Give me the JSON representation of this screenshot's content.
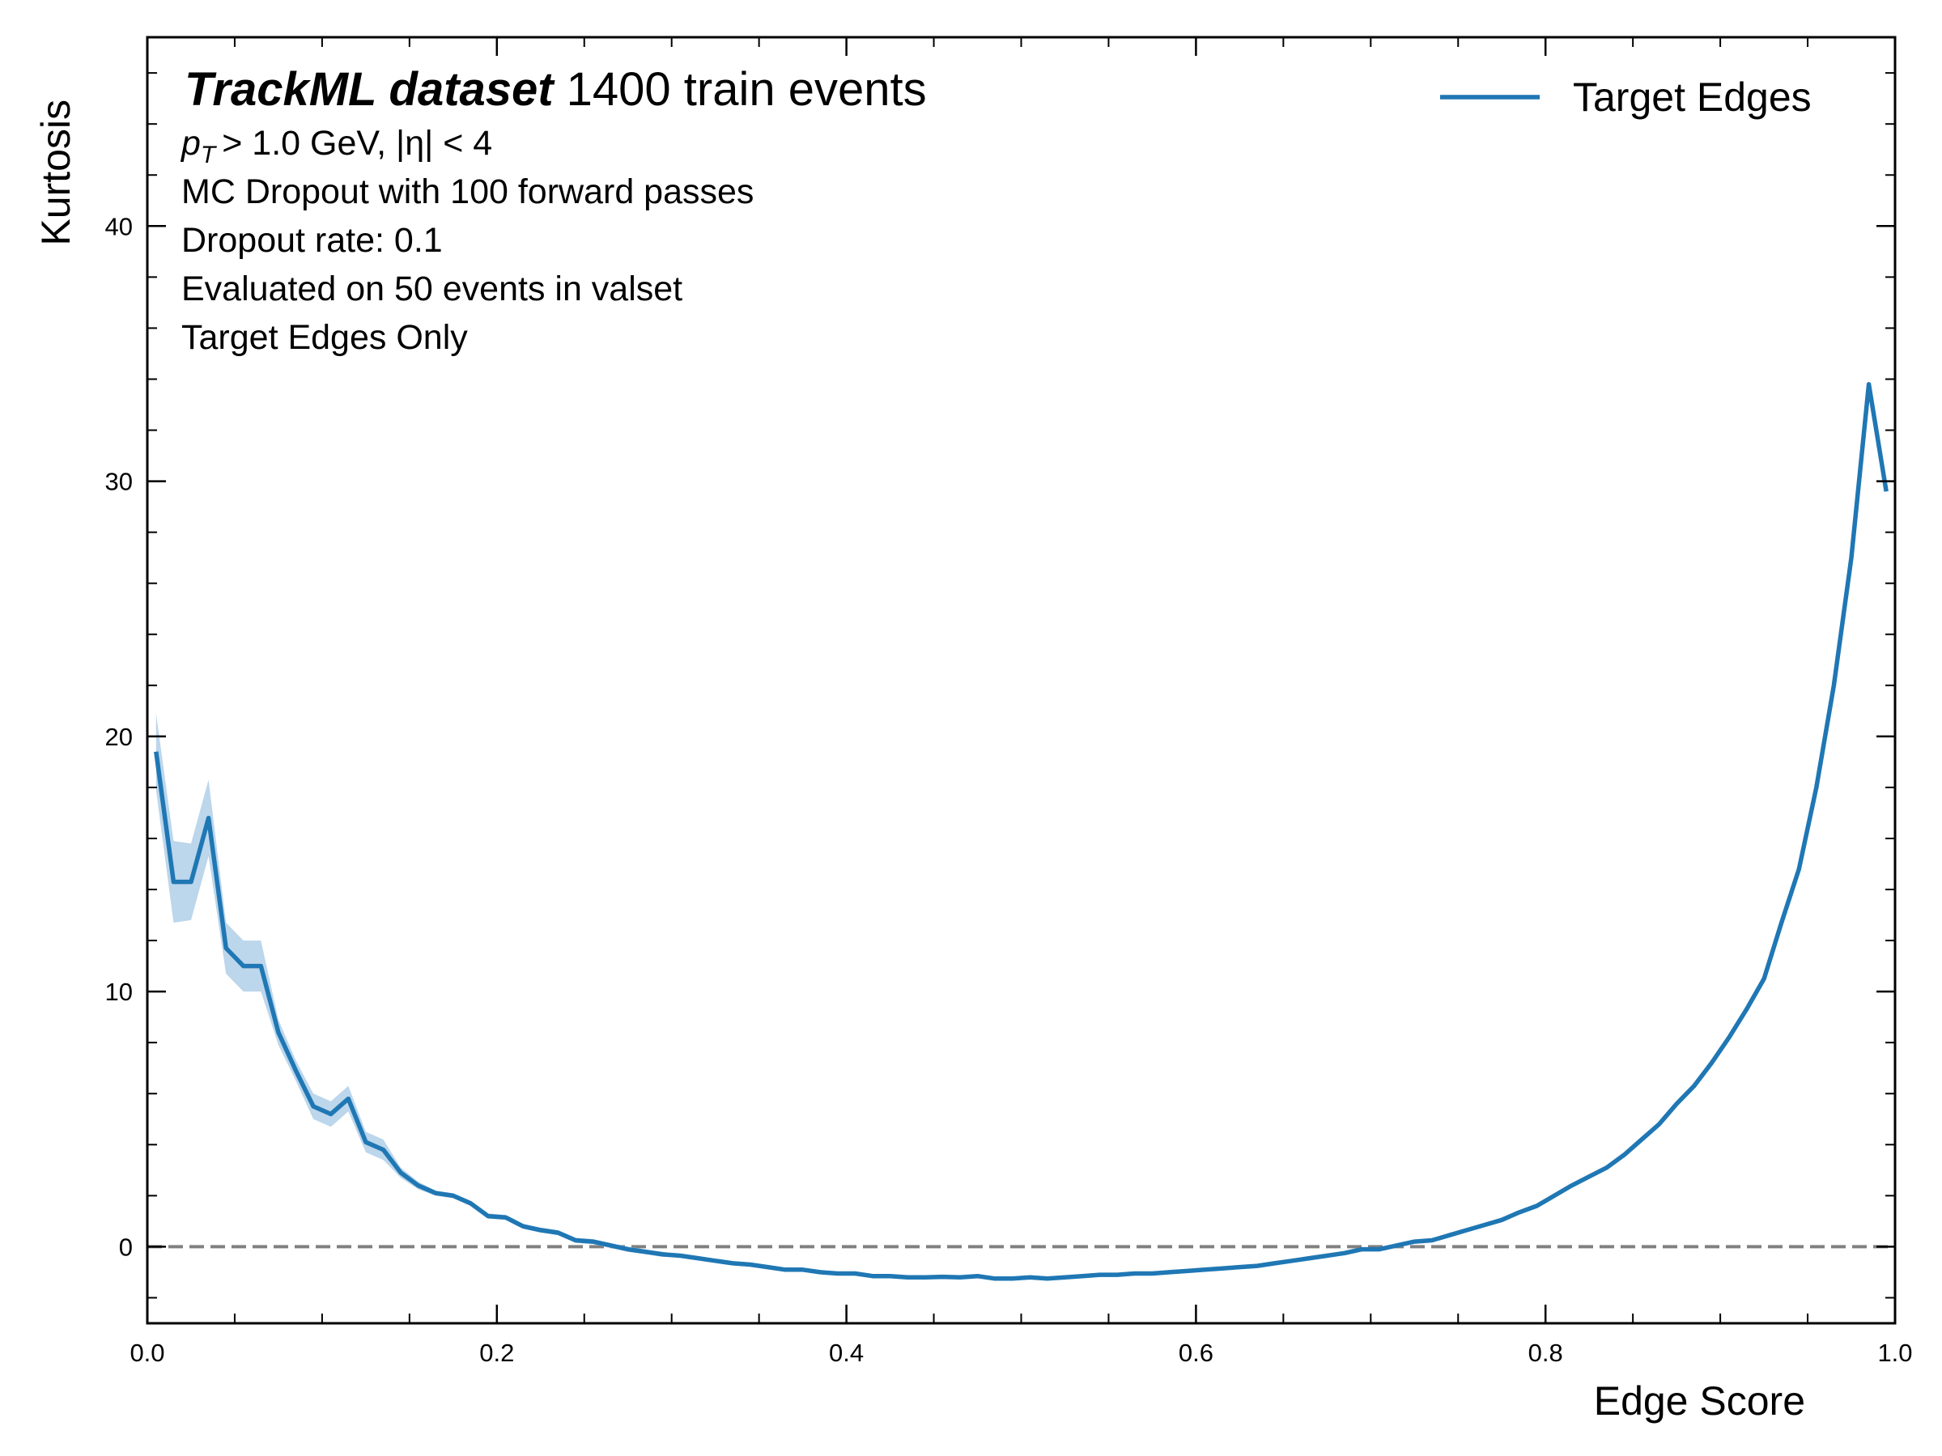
{
  "chart_data": {
    "type": "line",
    "title": {
      "bold": "TrackML dataset",
      "rest": "1400 train events"
    },
    "cut": {
      "symbol": "p",
      "subscript": "T",
      "text": "> 1.0 GeV, |η| < 4"
    },
    "annotations": [
      "MC Dropout with 100 forward passes",
      "Dropout rate: 0.1",
      "Evaluated on 50 events in valset",
      "Target Edges Only"
    ],
    "x_label": "Edge Score",
    "y_label": "Kurtosis",
    "xlim": [
      0,
      1
    ],
    "ylim": [
      -3,
      47.4
    ],
    "xticks": [
      {
        "value": 0,
        "label": "0.0"
      },
      0.2,
      0.4,
      0.6,
      0.8,
      {
        "value": 1,
        "label": "1.0"
      }
    ],
    "yticks": [
      0,
      10,
      20,
      30,
      40
    ],
    "xminorticks": [
      0.05,
      0.1,
      0.15,
      0.25,
      0.3,
      0.35,
      0.45,
      0.5,
      0.55,
      0.65,
      0.7,
      0.75,
      0.85,
      0.9,
      0.95
    ],
    "yminorticks": [
      -2,
      2,
      4,
      6,
      8,
      12,
      14,
      16,
      18,
      22,
      24,
      26,
      28,
      32,
      34,
      36,
      38,
      42,
      44,
      46
    ],
    "hline": 0,
    "hline_color": "#808080",
    "legend": "upper right",
    "x": [
      0.005,
      0.015,
      0.025,
      0.035,
      0.045,
      0.055,
      0.065,
      0.075,
      0.085,
      0.095,
      0.105,
      0.115,
      0.125,
      0.135,
      0.145,
      0.155,
      0.165,
      0.175,
      0.185,
      0.195,
      0.205,
      0.215,
      0.225,
      0.235,
      0.245,
      0.255,
      0.265,
      0.275,
      0.285,
      0.295,
      0.305,
      0.315,
      0.325,
      0.335,
      0.345,
      0.355,
      0.365,
      0.375,
      0.385,
      0.395,
      0.405,
      0.415,
      0.425,
      0.435,
      0.445,
      0.455,
      0.465,
      0.475,
      0.485,
      0.495,
      0.505,
      0.515,
      0.525,
      0.535,
      0.545,
      0.555,
      0.565,
      0.575,
      0.585,
      0.595,
      0.605,
      0.615,
      0.625,
      0.635,
      0.645,
      0.655,
      0.665,
      0.675,
      0.685,
      0.695,
      0.705,
      0.715,
      0.725,
      0.735,
      0.745,
      0.755,
      0.765,
      0.775,
      0.785,
      0.795,
      0.805,
      0.815,
      0.825,
      0.835,
      0.845,
      0.855,
      0.865,
      0.875,
      0.885,
      0.895,
      0.905,
      0.915,
      0.925,
      0.935,
      0.945,
      0.955,
      0.965,
      0.975,
      0.985,
      0.995
    ],
    "series": [
      {
        "name": "Target Edges",
        "color": "#1f77b4",
        "band_color": "#a6c8e4",
        "values": [
          19.4,
          14.3,
          14.3,
          16.8,
          11.7,
          11.0,
          11.0,
          8.4,
          6.9,
          5.5,
          5.2,
          5.8,
          4.1,
          3.8,
          2.9,
          2.4,
          2.1,
          2.0,
          1.7,
          1.2,
          1.15,
          0.8,
          0.65,
          0.55,
          0.25,
          0.2,
          0.05,
          -0.1,
          -0.2,
          -0.3,
          -0.35,
          -0.45,
          -0.55,
          -0.65,
          -0.7,
          -0.8,
          -0.9,
          -0.9,
          -1.0,
          -1.05,
          -1.05,
          -1.15,
          -1.15,
          -1.2,
          -1.2,
          -1.18,
          -1.2,
          -1.15,
          -1.25,
          -1.25,
          -1.2,
          -1.25,
          -1.2,
          -1.15,
          -1.1,
          -1.1,
          -1.05,
          -1.05,
          -1.0,
          -0.95,
          -0.9,
          -0.85,
          -0.8,
          -0.75,
          -0.65,
          -0.55,
          -0.45,
          -0.35,
          -0.25,
          -0.1,
          -0.1,
          0.05,
          0.2,
          0.25,
          0.45,
          0.65,
          0.85,
          1.05,
          1.35,
          1.6,
          2.0,
          2.4,
          2.75,
          3.1,
          3.6,
          4.2,
          4.8,
          5.6,
          6.3,
          7.2,
          8.2,
          9.3,
          10.5,
          12.7,
          14.8,
          18.0,
          22.0,
          27.0,
          33.8,
          29.6
        ],
        "errors": [
          1.5,
          1.6,
          1.5,
          1.5,
          1.0,
          1.0,
          1.0,
          0.5,
          0.4,
          0.5,
          0.5,
          0.5,
          0.4,
          0.4,
          0.2,
          0.15,
          0.1,
          0.1,
          0.1,
          0.1,
          0.1,
          0.1,
          0.1,
          0.1,
          0.1,
          0.1,
          0.1,
          0.1,
          0.1,
          0.1,
          0.05,
          0.05,
          0.05,
          0.05,
          0.05,
          0.05,
          0.05,
          0.05,
          0.05,
          0.05,
          0.05,
          0.05,
          0.05,
          0.05,
          0.05,
          0.05,
          0.05,
          0.05,
          0.05,
          0.05,
          0.05,
          0.05,
          0.05,
          0.05,
          0.05,
          0.05,
          0.05,
          0.05,
          0.05,
          0.05,
          0.05,
          0.05,
          0.05,
          0.05,
          0.05,
          0.05,
          0.05,
          0.05,
          0.05,
          0.05,
          0.05,
          0.05,
          0.05,
          0.05,
          0.05,
          0.05,
          0.05,
          0.05,
          0.05,
          0.05,
          0.05,
          0.05,
          0.05,
          0.05,
          0.05,
          0.05,
          0.05,
          0.05,
          0.05,
          0.05,
          0.05,
          0.05,
          0.05,
          0.05,
          0.05,
          0.05,
          0.05,
          0.05,
          0.05,
          0.05
        ]
      }
    ]
  }
}
